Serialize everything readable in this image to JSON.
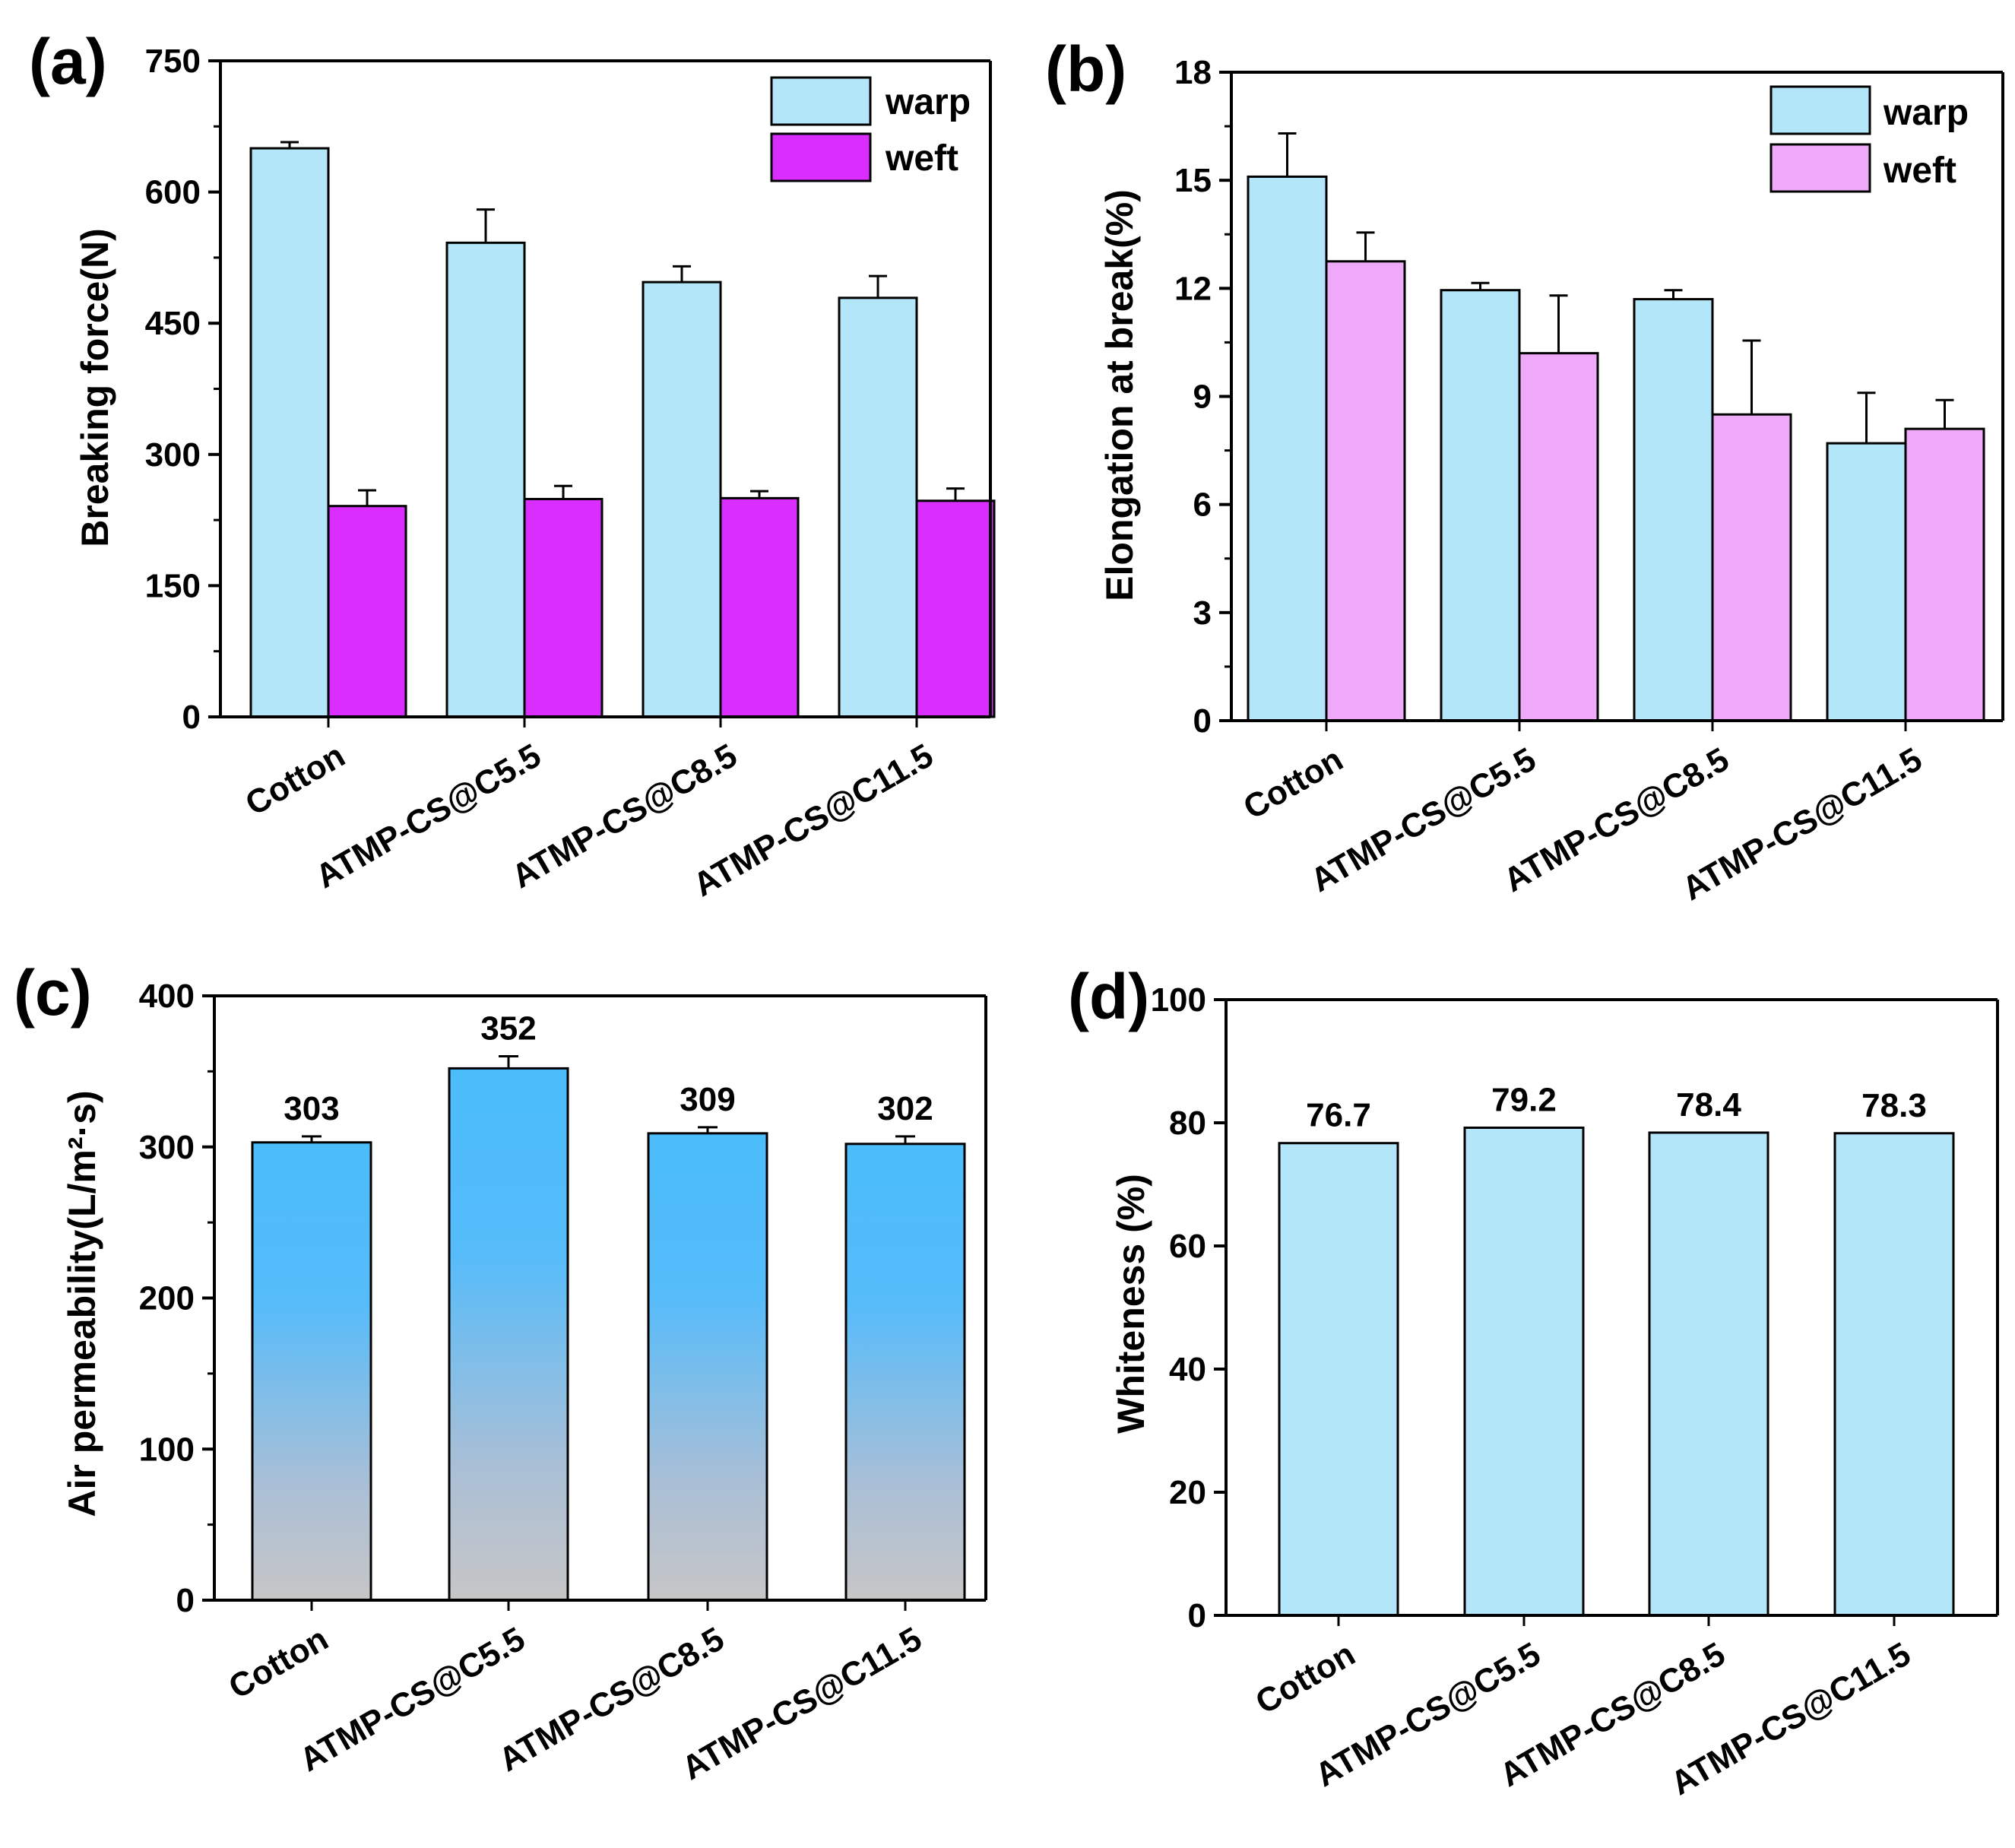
{
  "colors": {
    "warp": "#b3e6f9",
    "weft_a": "#d92eff",
    "weft_b": "#eeaaf8",
    "grad_top": "#4cbdfb",
    "grad_bottom": "#c6c6c6",
    "whiteness": "#b3e6f9",
    "stroke": "#000000"
  },
  "chart_data": [
    {
      "type": "bar",
      "panel": "(a)",
      "categories": [
        "Cotton",
        "ATMP-CS@C5.5",
        "ATMP-CS@C8.5",
        "ATMP-CS@C11.5"
      ],
      "series": [
        {
          "name": "warp",
          "values": [
            650,
            542,
            497,
            479
          ],
          "errors": [
            7,
            38,
            18,
            25
          ]
        },
        {
          "name": "weft",
          "values": [
            241,
            249,
            250,
            247
          ],
          "errors": [
            18,
            15,
            8,
            14
          ]
        }
      ],
      "ylabel": "Breaking force(N)",
      "ylim": [
        0,
        750
      ],
      "yticks": [
        "0",
        "150",
        "300",
        "450",
        "600",
        "750"
      ],
      "legend_position": "top-right"
    },
    {
      "type": "bar",
      "panel": "(b)",
      "categories": [
        "Cotton",
        "ATMP-CS@C5.5",
        "ATMP-CS@C8.5",
        "ATMP-CS@C11.5"
      ],
      "series": [
        {
          "name": "warp",
          "values": [
            15.1,
            11.95,
            11.7,
            7.7
          ],
          "errors": [
            1.2,
            0.2,
            0.25,
            1.4
          ]
        },
        {
          "name": "weft",
          "values": [
            12.75,
            10.2,
            8.5,
            8.1
          ],
          "errors": [
            0.8,
            1.6,
            2.05,
            0.8
          ]
        }
      ],
      "ylabel": "Elongation at break(%)",
      "ylim": [
        0,
        18
      ],
      "yticks": [
        "0",
        "3",
        "6",
        "9",
        "12",
        "15",
        "18"
      ],
      "legend_position": "top-right"
    },
    {
      "type": "bar",
      "panel": "(c)",
      "categories": [
        "Cotton",
        "ATMP-CS@C5.5",
        "ATMP-CS@C8.5",
        "ATMP-CS@C11.5"
      ],
      "values": [
        303,
        352,
        309,
        302
      ],
      "errors": [
        4,
        8,
        4,
        5
      ],
      "data_labels": [
        "303",
        "352",
        "309",
        "302"
      ],
      "ylabel": "Air permeability(L/m²·s)",
      "ylim": [
        0,
        400
      ],
      "yticks": [
        "0",
        "100",
        "200",
        "300",
        "400"
      ]
    },
    {
      "type": "bar",
      "panel": "(d)",
      "categories": [
        "Cotton",
        "ATMP-CS@C5.5",
        "ATMP-CS@C8.5",
        "ATMP-CS@C11.5"
      ],
      "values": [
        76.7,
        79.2,
        78.4,
        78.3
      ],
      "data_labels": [
        "76.7",
        "79.2",
        "78.4",
        "78.3"
      ],
      "ylabel": "Whiteness (%)",
      "ylim": [
        0,
        100
      ],
      "yticks": [
        "0",
        "20",
        "40",
        "60",
        "80",
        "100"
      ]
    }
  ]
}
